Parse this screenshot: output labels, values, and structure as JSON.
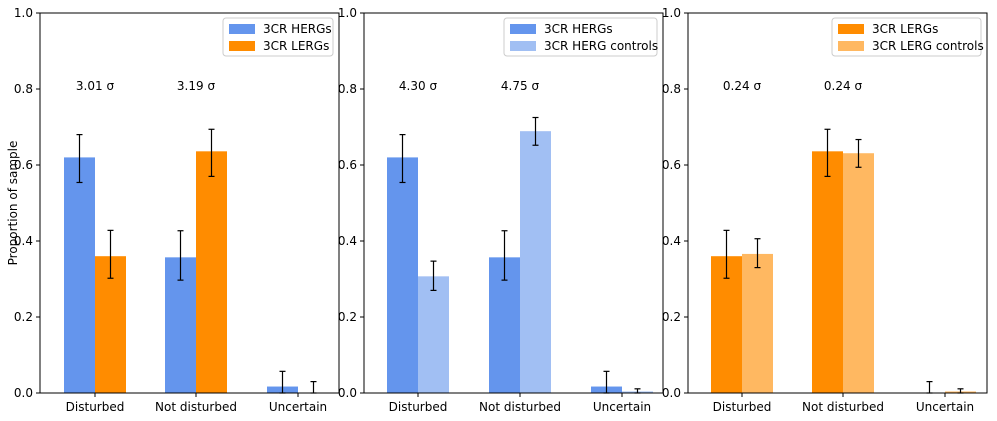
{
  "chart_data": [
    {
      "type": "bar",
      "categories": [
        "Disturbed",
        "Not disturbed",
        "Uncertain"
      ],
      "ylabel": "Proportion of sample",
      "ylim": [
        0,
        1.0
      ],
      "yticks": [
        "0.0",
        "0.2",
        "0.4",
        "0.6",
        "0.8",
        "1.0"
      ],
      "legend_position": "top-right",
      "series": [
        {
          "name": "3CR HERGs",
          "color": "#6495ED",
          "values": [
            0.62,
            0.357,
            0.017
          ],
          "err_low": [
            0.066,
            0.06,
            0.017
          ],
          "err_high": [
            0.06,
            0.07,
            0.04
          ]
        },
        {
          "name": "3CR LERGs",
          "color": "#FF8C00",
          "values": [
            0.36,
            0.636,
            0.0
          ],
          "err_low": [
            0.058,
            0.066,
            0.0
          ],
          "err_high": [
            0.068,
            0.058,
            0.03
          ]
        }
      ],
      "annotations": [
        "3.01 σ",
        "3.19 σ"
      ]
    },
    {
      "type": "bar",
      "categories": [
        "Disturbed",
        "Not disturbed",
        "Uncertain"
      ],
      "ylim": [
        0,
        1.0
      ],
      "yticks": [
        "0.0",
        "0.2",
        "0.4",
        "0.6",
        "0.8",
        "1.0"
      ],
      "legend_position": "top-right",
      "series": [
        {
          "name": "3CR HERGs",
          "color": "#6495ED",
          "values": [
            0.62,
            0.357,
            0.017
          ],
          "err_low": [
            0.066,
            0.06,
            0.017
          ],
          "err_high": [
            0.06,
            0.07,
            0.04
          ]
        },
        {
          "name": "3CR HERG controls",
          "color": "#A1BFF3",
          "values": [
            0.307,
            0.689,
            0.004
          ],
          "err_low": [
            0.037,
            0.037,
            0.004
          ],
          "err_high": [
            0.04,
            0.036,
            0.007
          ]
        }
      ],
      "annotations": [
        "4.30 σ",
        "4.75 σ"
      ]
    },
    {
      "type": "bar",
      "categories": [
        "Disturbed",
        "Not disturbed",
        "Uncertain"
      ],
      "ylim": [
        0,
        1.0
      ],
      "yticks": [
        "0.0",
        "0.2",
        "0.4",
        "0.6",
        "0.8",
        "1.0"
      ],
      "legend_position": "top-right",
      "series": [
        {
          "name": "3CR LERGs",
          "color": "#FF8C00",
          "values": [
            0.36,
            0.636,
            0.0
          ],
          "err_low": [
            0.058,
            0.066,
            0.0
          ],
          "err_high": [
            0.068,
            0.058,
            0.03
          ]
        },
        {
          "name": "3CR LERG controls",
          "color": "#FFB861",
          "values": [
            0.366,
            0.631,
            0.004
          ],
          "err_low": [
            0.036,
            0.037,
            0.004
          ],
          "err_high": [
            0.04,
            0.036,
            0.007
          ]
        }
      ],
      "annotations": [
        "0.24 σ",
        "0.24 σ"
      ]
    }
  ]
}
